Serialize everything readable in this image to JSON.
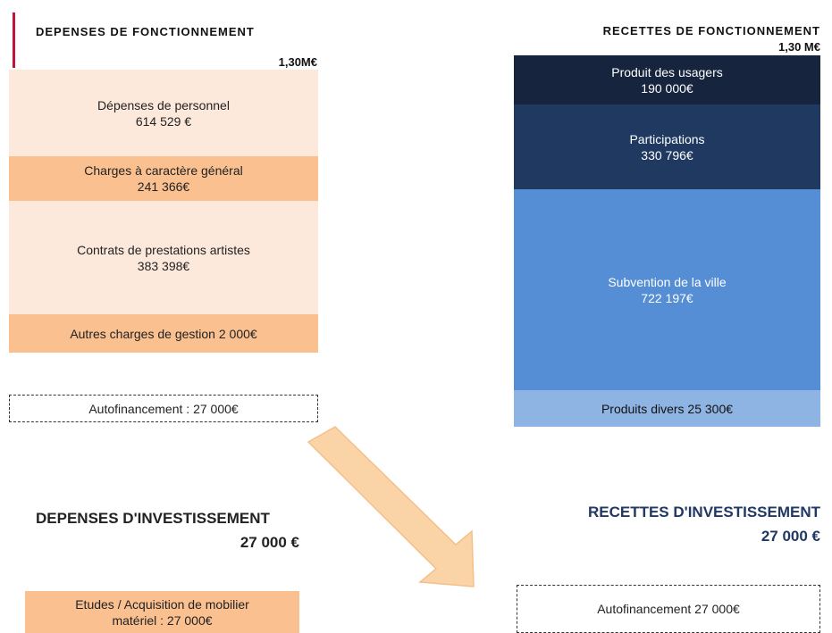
{
  "fonctionnement": {
    "depenses": {
      "title": "DEPENSES  DE  FONCTIONNEMENT",
      "total": "1,30M€",
      "items": [
        {
          "lines": [
            "Dépenses de personnel",
            "614 529 €"
          ]
        },
        {
          "lines": [
            "Charges à caractère général",
            "241 366€"
          ]
        },
        {
          "lines": [
            "Contrats de prestations artistes",
            "383 398€"
          ]
        },
        {
          "lines": [
            "Autres charges de gestion  2 000€"
          ]
        }
      ],
      "autofinancement": "Autofinancement  : 27 000€"
    },
    "recettes": {
      "title": "RECETTES  DE  FONCTIONNEMENT",
      "total": "1,30 M€",
      "items": [
        {
          "lines": [
            "Produit des usagers",
            "190 000€"
          ]
        },
        {
          "lines": [
            "Participations",
            "330 796€"
          ]
        },
        {
          "lines": [
            "Subvention de la ville",
            "722 197€"
          ]
        },
        {
          "lines": [
            "Produits divers 25 300€"
          ]
        }
      ]
    }
  },
  "investissement": {
    "depenses": {
      "title": "DEPENSES D'INVESTISSEMENT",
      "total": "27 000 €",
      "item": {
        "lines": [
          "Etudes  / Acquisition de mobilier",
          "matériel : 27 000€"
        ]
      }
    },
    "recettes": {
      "title": "RECETTES D'INVESTISSEMENT",
      "total": "27 000 €",
      "item": {
        "lines": [
          "Autofinancement  27 000€"
        ]
      }
    }
  }
}
